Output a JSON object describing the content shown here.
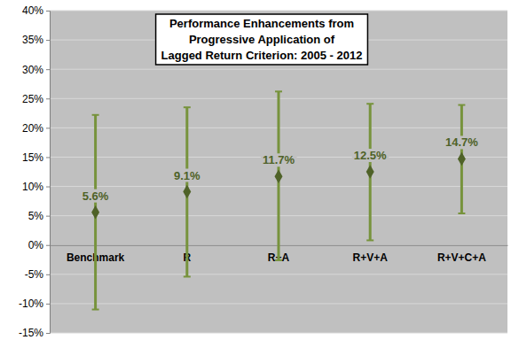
{
  "chart_data": {
    "type": "errorbar",
    "title": "Performance Enhancements from\nProgressive Application of\nLagged Return Criterion: 2005 - 2012",
    "categories": [
      "Benchmark",
      "R",
      "R+A",
      "R+V+A",
      "R+V+C+A"
    ],
    "values": [
      5.6,
      9.1,
      11.7,
      12.5,
      14.7
    ],
    "value_labels": [
      "5.6%",
      "9.1%",
      "11.7%",
      "12.5%",
      "14.7%"
    ],
    "range_low": [
      -11,
      -5.4,
      -2.6,
      0.8,
      5.4
    ],
    "range_high": [
      22.2,
      23.5,
      26.2,
      24.1,
      23.9
    ],
    "color": "#77933c",
    "marker": "diamond",
    "ylim": [
      -15,
      40
    ],
    "yticks": [
      {
        "value": -15,
        "label": "-15%"
      },
      {
        "value": -10,
        "label": "-10%"
      },
      {
        "value": -5,
        "label": "-5%"
      },
      {
        "value": 0,
        "label": "0%"
      },
      {
        "value": 5,
        "label": "5%"
      },
      {
        "value": 10,
        "label": "10%"
      },
      {
        "value": 15,
        "label": "15%"
      },
      {
        "value": 20,
        "label": "20%"
      },
      {
        "value": 25,
        "label": "25%"
      },
      {
        "value": 30,
        "label": "30%"
      },
      {
        "value": 35,
        "label": "35%"
      },
      {
        "value": 40,
        "label": "40%"
      }
    ],
    "grid": true,
    "data_labels": true
  }
}
